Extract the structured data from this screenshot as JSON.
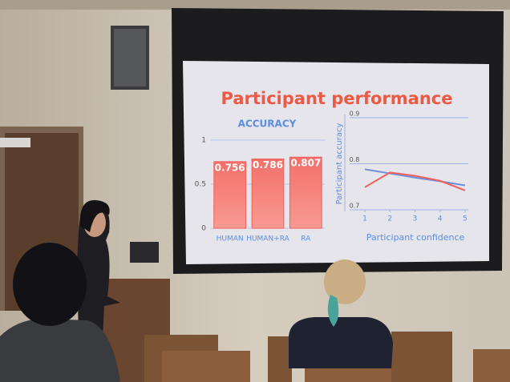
{
  "slide_title": "Participant performance",
  "chart_data": [
    {
      "type": "bar",
      "title": "ACCURACY",
      "categories": [
        "HUMAN",
        "HUMAN+RA",
        "RA"
      ],
      "values": [
        0.756,
        0.786,
        0.807
      ],
      "color": "#f2605c",
      "ylim": [
        0,
        1
      ],
      "yticks": [
        0,
        0.5,
        1
      ],
      "grid": true
    },
    {
      "type": "line",
      "ylabel": "Participant accuracy",
      "xlabel": "Participant confidence",
      "x": [
        1,
        2,
        3,
        4,
        5
      ],
      "series": [
        {
          "color": "#6a8fd8",
          "values": [
            0.788,
            0.779,
            0.77,
            0.762,
            0.753
          ]
        },
        {
          "color": "#f2605c",
          "values": [
            0.749,
            0.781,
            0.774,
            0.763,
            0.742
          ]
        }
      ],
      "xlim": [
        1,
        5
      ],
      "xticks": [
        1,
        2,
        3,
        4,
        5
      ],
      "ylim": [
        0.7,
        0.9
      ],
      "yticks": [
        0.7,
        0.8,
        0.9
      ],
      "grid": true
    }
  ]
}
